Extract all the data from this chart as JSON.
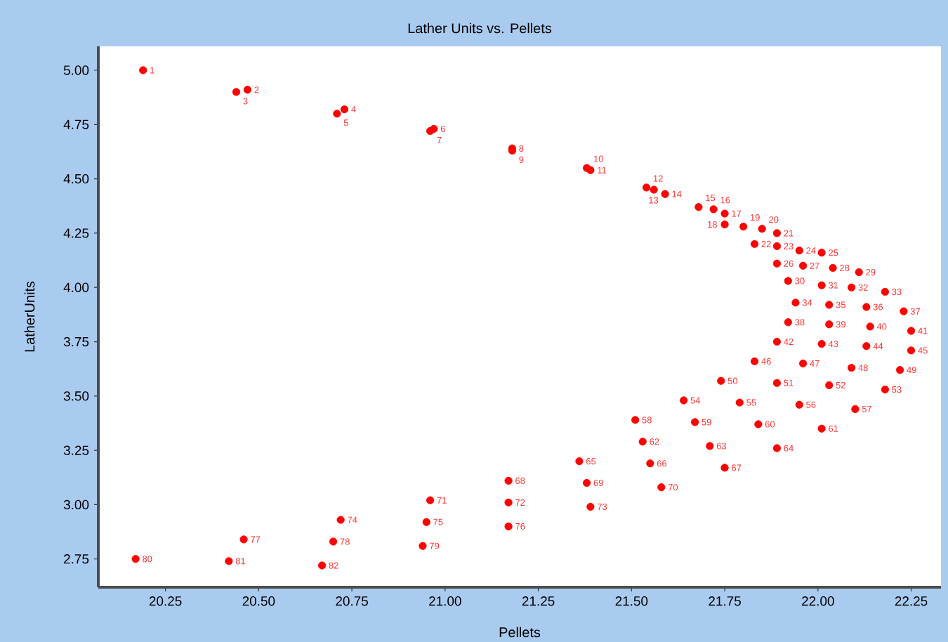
{
  "chart_data": {
    "type": "scatter",
    "title": "Lather Units vs. Pellets",
    "xlabel": "Pellets",
    "ylabel": "LatherUnits",
    "x": [
      20.19,
      20.47,
      20.44,
      20.73,
      20.71,
      20.97,
      20.96,
      21.18,
      21.18,
      21.38,
      21.39,
      21.54,
      21.56,
      21.59,
      21.68,
      21.72,
      21.75,
      21.75,
      21.8,
      21.85,
      21.89,
      21.83,
      21.89,
      21.95,
      22.01,
      21.89,
      21.96,
      22.04,
      22.11,
      21.92,
      22.01,
      22.09,
      22.18,
      21.94,
      22.03,
      22.13,
      22.23,
      21.92,
      22.03,
      22.14,
      22.25,
      21.89,
      22.01,
      22.13,
      22.25,
      21.83,
      21.96,
      22.09,
      22.22,
      21.74,
      21.89,
      22.03,
      22.18,
      21.64,
      21.79,
      21.95,
      22.1,
      21.51,
      21.67,
      21.84,
      22.01,
      21.53,
      21.71,
      21.89,
      21.36,
      21.55,
      21.75,
      21.17,
      21.38,
      21.58,
      20.96,
      21.17,
      21.39,
      20.72,
      20.95,
      21.17,
      20.46,
      20.7,
      20.94,
      20.17,
      20.42,
      20.67
    ],
    "values": [
      5.0,
      4.91,
      4.9,
      4.82,
      4.8,
      4.73,
      4.72,
      4.64,
      4.63,
      4.55,
      4.54,
      4.46,
      4.45,
      4.43,
      4.37,
      4.36,
      4.34,
      4.29,
      4.28,
      4.27,
      4.25,
      4.2,
      4.19,
      4.17,
      4.16,
      4.11,
      4.1,
      4.09,
      4.07,
      4.03,
      4.01,
      4.0,
      3.98,
      3.93,
      3.92,
      3.91,
      3.89,
      3.84,
      3.83,
      3.82,
      3.8,
      3.75,
      3.74,
      3.73,
      3.71,
      3.66,
      3.65,
      3.63,
      3.62,
      3.57,
      3.56,
      3.55,
      3.53,
      3.48,
      3.47,
      3.46,
      3.44,
      3.39,
      3.38,
      3.37,
      3.35,
      3.29,
      3.27,
      3.26,
      3.2,
      3.19,
      3.17,
      3.11,
      3.1,
      3.08,
      3.02,
      3.01,
      2.99,
      2.93,
      2.92,
      2.9,
      2.84,
      2.83,
      2.81,
      2.75,
      2.74,
      2.72
    ],
    "annotations": [
      {
        "text": "1",
        "x": 20.19,
        "y": 5.0
      },
      {
        "text": "2",
        "x": 20.47,
        "y": 4.91
      },
      {
        "text": "3",
        "x": 20.44,
        "y": 4.9
      },
      {
        "text": "4",
        "x": 20.73,
        "y": 4.82
      },
      {
        "text": "5",
        "x": 20.71,
        "y": 4.8
      },
      {
        "text": "6",
        "x": 20.97,
        "y": 4.73
      },
      {
        "text": "7",
        "x": 20.96,
        "y": 4.72
      },
      {
        "text": "8",
        "x": 21.18,
        "y": 4.64
      },
      {
        "text": "9",
        "x": 21.18,
        "y": 4.63
      },
      {
        "text": "10",
        "x": 21.38,
        "y": 4.55
      },
      {
        "text": "11",
        "x": 21.39,
        "y": 4.54
      },
      {
        "text": "12",
        "x": 21.54,
        "y": 4.46
      },
      {
        "text": "13",
        "x": 21.56,
        "y": 4.45
      },
      {
        "text": "14",
        "x": 21.59,
        "y": 4.43
      },
      {
        "text": "15",
        "x": 21.68,
        "y": 4.37
      },
      {
        "text": "16",
        "x": 21.72,
        "y": 4.36
      },
      {
        "text": "17",
        "x": 21.75,
        "y": 4.34
      },
      {
        "text": "18",
        "x": 21.75,
        "y": 4.29
      },
      {
        "text": "19",
        "x": 21.8,
        "y": 4.28
      },
      {
        "text": "20",
        "x": 21.85,
        "y": 4.27
      },
      {
        "text": "21",
        "x": 21.89,
        "y": 4.25
      },
      {
        "text": "22",
        "x": 21.83,
        "y": 4.2
      },
      {
        "text": "23",
        "x": 21.89,
        "y": 4.19
      },
      {
        "text": "24",
        "x": 21.95,
        "y": 4.17
      },
      {
        "text": "25",
        "x": 22.01,
        "y": 4.16
      },
      {
        "text": "26",
        "x": 21.89,
        "y": 4.11
      },
      {
        "text": "27",
        "x": 21.96,
        "y": 4.1
      },
      {
        "text": "28",
        "x": 22.04,
        "y": 4.09
      },
      {
        "text": "29",
        "x": 22.11,
        "y": 4.07
      },
      {
        "text": "30",
        "x": 21.92,
        "y": 4.03
      },
      {
        "text": "31",
        "x": 22.01,
        "y": 4.01
      },
      {
        "text": "32",
        "x": 22.09,
        "y": 4.0
      },
      {
        "text": "33",
        "x": 22.18,
        "y": 3.98
      },
      {
        "text": "34",
        "x": 21.94,
        "y": 3.93
      },
      {
        "text": "35",
        "x": 22.03,
        "y": 3.92
      },
      {
        "text": "36",
        "x": 22.13,
        "y": 3.91
      },
      {
        "text": "37",
        "x": 22.23,
        "y": 3.89
      },
      {
        "text": "38",
        "x": 21.92,
        "y": 3.84
      },
      {
        "text": "39",
        "x": 22.03,
        "y": 3.83
      },
      {
        "text": "40",
        "x": 22.14,
        "y": 3.82
      },
      {
        "text": "41",
        "x": 22.25,
        "y": 3.8
      },
      {
        "text": "42",
        "x": 21.89,
        "y": 3.75
      },
      {
        "text": "43",
        "x": 22.01,
        "y": 3.74
      },
      {
        "text": "44",
        "x": 22.13,
        "y": 3.73
      },
      {
        "text": "45",
        "x": 22.25,
        "y": 3.71
      },
      {
        "text": "46",
        "x": 21.83,
        "y": 3.66
      },
      {
        "text": "47",
        "x": 21.96,
        "y": 3.65
      },
      {
        "text": "48",
        "x": 22.09,
        "y": 3.63
      },
      {
        "text": "49",
        "x": 22.22,
        "y": 3.62
      },
      {
        "text": "50",
        "x": 21.74,
        "y": 3.57
      },
      {
        "text": "51",
        "x": 21.89,
        "y": 3.56
      },
      {
        "text": "52",
        "x": 22.03,
        "y": 3.55
      },
      {
        "text": "53",
        "x": 22.18,
        "y": 3.53
      },
      {
        "text": "54",
        "x": 21.64,
        "y": 3.48
      },
      {
        "text": "55",
        "x": 21.79,
        "y": 3.47
      },
      {
        "text": "56",
        "x": 21.95,
        "y": 3.46
      },
      {
        "text": "57",
        "x": 22.1,
        "y": 3.44
      },
      {
        "text": "58",
        "x": 21.51,
        "y": 3.39
      },
      {
        "text": "59",
        "x": 21.67,
        "y": 3.38
      },
      {
        "text": "60",
        "x": 21.84,
        "y": 3.37
      },
      {
        "text": "61",
        "x": 22.01,
        "y": 3.35
      },
      {
        "text": "62",
        "x": 21.53,
        "y": 3.29
      },
      {
        "text": "63",
        "x": 21.71,
        "y": 3.27
      },
      {
        "text": "64",
        "x": 21.89,
        "y": 3.26
      },
      {
        "text": "65",
        "x": 21.36,
        "y": 3.2
      },
      {
        "text": "66",
        "x": 21.55,
        "y": 3.19
      },
      {
        "text": "67",
        "x": 21.75,
        "y": 3.17
      },
      {
        "text": "68",
        "x": 21.17,
        "y": 3.11
      },
      {
        "text": "69",
        "x": 21.38,
        "y": 3.1
      },
      {
        "text": "70",
        "x": 21.58,
        "y": 3.08
      },
      {
        "text": "71",
        "x": 20.96,
        "y": 3.02
      },
      {
        "text": "72",
        "x": 21.17,
        "y": 3.01
      },
      {
        "text": "73",
        "x": 21.39,
        "y": 2.99
      },
      {
        "text": "74",
        "x": 20.72,
        "y": 2.93
      },
      {
        "text": "75",
        "x": 20.95,
        "y": 2.92
      },
      {
        "text": "76",
        "x": 21.17,
        "y": 2.9
      },
      {
        "text": "77",
        "x": 20.46,
        "y": 2.84
      },
      {
        "text": "78",
        "x": 20.7,
        "y": 2.83
      },
      {
        "text": "79",
        "x": 20.94,
        "y": 2.81
      },
      {
        "text": "80",
        "x": 20.17,
        "y": 2.75
      },
      {
        "text": "81",
        "x": 20.42,
        "y": 2.74
      },
      {
        "text": "82",
        "x": 20.67,
        "y": 2.72
      }
    ],
    "color": "#ff0000",
    "marker": "circle",
    "grid": false,
    "xlim": [
      20.07,
      22.33
    ],
    "ylim": [
      2.62,
      5.11
    ],
    "xticks": [
      20.25,
      {
        "value": 20.5,
        "label": "20.50"
      },
      20.75,
      {
        "value": 21,
        "label": "21.00"
      },
      21.25,
      {
        "value": 21.5,
        "label": "21.50"
      },
      21.75,
      {
        "value": 22,
        "label": "22.00"
      },
      22.25
    ],
    "yticks": [
      2.75,
      {
        "value": 3,
        "label": "3.00"
      },
      3.25,
      {
        "value": 3.5,
        "label": "3.50"
      },
      3.75,
      {
        "value": 4,
        "label": "4.00"
      },
      4.25,
      {
        "value": 4.5,
        "label": "4.50"
      },
      4.75,
      {
        "value": 5,
        "label": "5.00"
      }
    ]
  }
}
